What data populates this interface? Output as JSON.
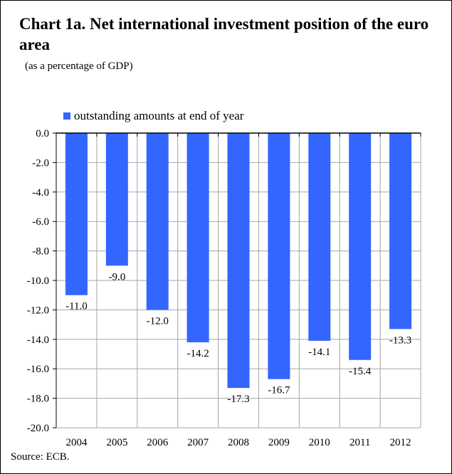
{
  "chart_data": {
    "type": "bar",
    "title": "Chart 1a. Net international investment position of the euro area",
    "subtitle": "(as a percentage of GDP)",
    "legend": [
      "outstanding amounts at end of year"
    ],
    "legend_position": "top-left",
    "categories": [
      "2004",
      "2005",
      "2006",
      "2007",
      "2008",
      "2009",
      "2010",
      "2011",
      "2012"
    ],
    "series": [
      {
        "name": "outstanding amounts at end of year",
        "values": [
          -11.0,
          -9.0,
          -12.0,
          -14.2,
          -17.3,
          -16.7,
          -14.1,
          -15.4,
          -13.3
        ],
        "color": "#3366FF"
      }
    ],
    "xlabel": "",
    "ylabel": "",
    "ylim": [
      -20,
      0
    ],
    "yticks": [
      "0.0",
      "-2.0",
      "-4.0",
      "-6.0",
      "-8.0",
      "-10.0",
      "-12.0",
      "-14.0",
      "-16.0",
      "-18.0",
      "-20.0"
    ],
    "grid": true,
    "source": "Source: ECB."
  }
}
